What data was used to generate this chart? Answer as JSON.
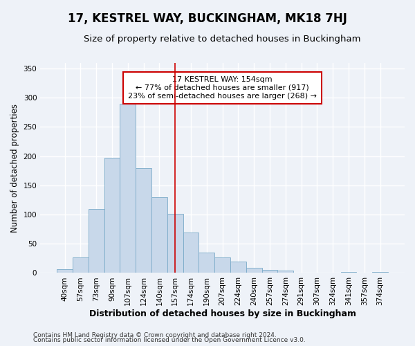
{
  "title": "17, KESTREL WAY, BUCKINGHAM, MK18 7HJ",
  "subtitle": "Size of property relative to detached houses in Buckingham",
  "xlabel": "Distribution of detached houses by size in Buckingham",
  "ylabel": "Number of detached properties",
  "footer_line1": "Contains HM Land Registry data © Crown copyright and database right 2024.",
  "footer_line2": "Contains public sector information licensed under the Open Government Licence v3.0.",
  "bar_color": "#c8d8ea",
  "bar_edge_color": "#7aaac8",
  "vline_color": "#cc0000",
  "vline_x_index": 7,
  "annotation_title": "17 KESTREL WAY: 154sqm",
  "annotation_line2": "← 77% of detached houses are smaller (917)",
  "annotation_line3": "23% of semi-detached houses are larger (268) →",
  "annotation_box_color": "#cc0000",
  "categories": [
    "40sqm",
    "57sqm",
    "73sqm",
    "90sqm",
    "107sqm",
    "124sqm",
    "140sqm",
    "157sqm",
    "174sqm",
    "190sqm",
    "207sqm",
    "224sqm",
    "240sqm",
    "257sqm",
    "274sqm",
    "291sqm",
    "307sqm",
    "324sqm",
    "341sqm",
    "357sqm",
    "374sqm"
  ],
  "values": [
    6,
    27,
    110,
    197,
    289,
    180,
    130,
    101,
    69,
    35,
    27,
    20,
    9,
    5,
    4,
    0,
    1,
    0,
    2,
    0,
    2
  ],
  "ylim": [
    0,
    360
  ],
  "yticks": [
    0,
    50,
    100,
    150,
    200,
    250,
    300,
    350
  ],
  "background_color": "#eef2f8",
  "grid_color": "#ffffff",
  "title_fontsize": 12,
  "subtitle_fontsize": 9.5,
  "xlabel_fontsize": 9,
  "ylabel_fontsize": 8.5,
  "tick_fontsize": 7.5,
  "annotation_fontsize": 8,
  "footer_fontsize": 6.5
}
